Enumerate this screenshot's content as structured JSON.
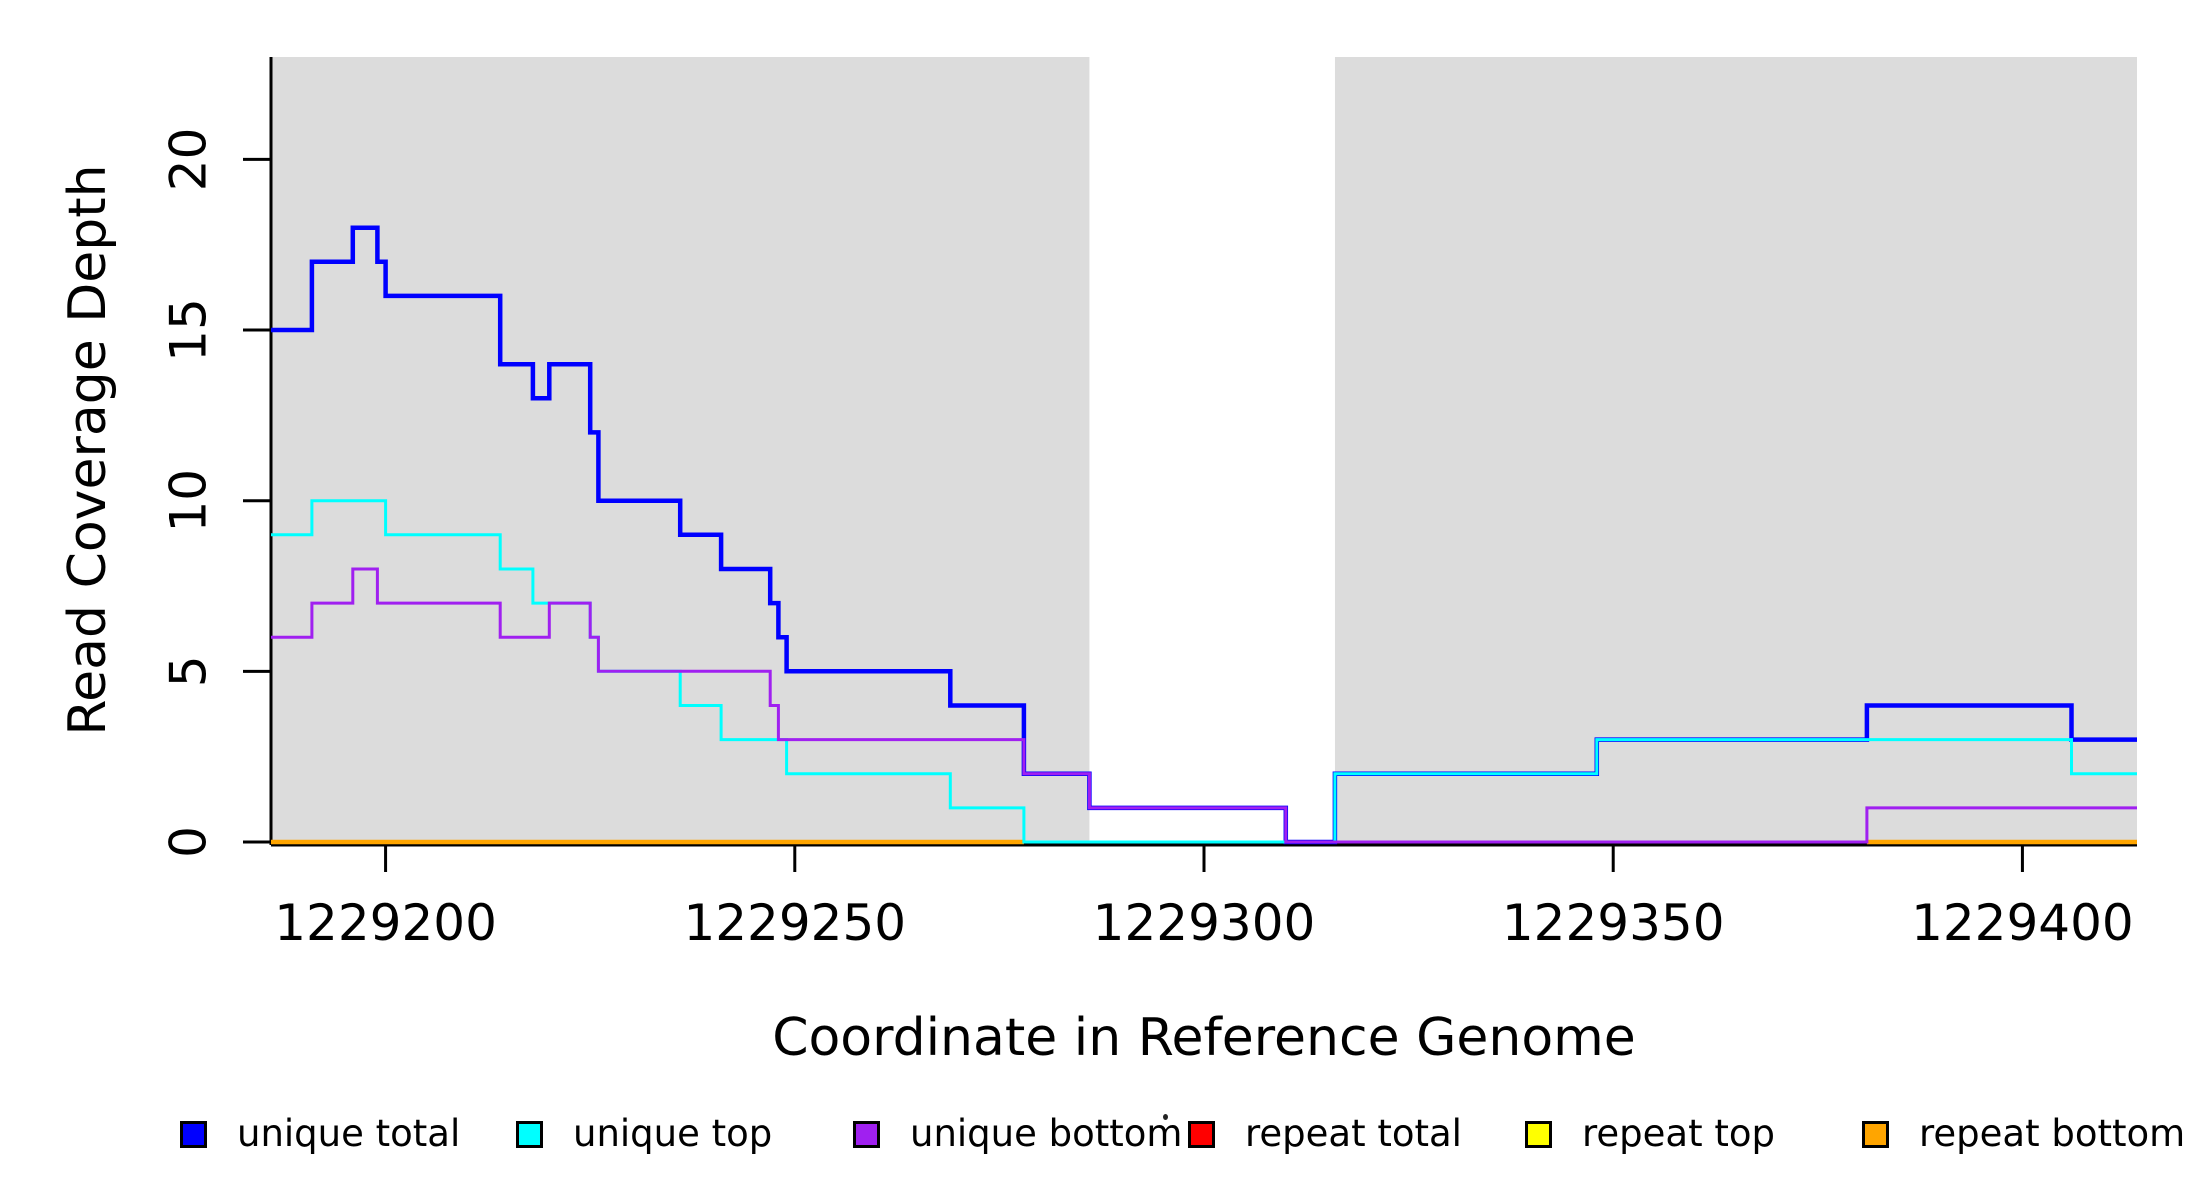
{
  "chart_data": {
    "type": "line",
    "subtype": "step-coverage-plot",
    "title": "",
    "xlabel": "Coordinate in Reference Genome",
    "ylabel": "Read Coverage Depth",
    "xlim": [
      1229186,
      1229414
    ],
    "ylim": [
      0,
      23
    ],
    "grid": false,
    "background_color": "#ffffff",
    "shaded_region_color": "#dcdcdc",
    "shaded_regions": [
      {
        "name": "left-shaded-region",
        "start": 1229186,
        "end": 1229286
      },
      {
        "name": "right-shaded-region",
        "start": 1229316,
        "end": 1229414
      }
    ],
    "xticks": {
      "values": [
        1229200,
        1229250,
        1229300,
        1229350,
        1229400
      ],
      "labels": [
        "1229200",
        "1229250",
        "1229300",
        "1229350",
        "1229400"
      ]
    },
    "yticks": {
      "values": [
        0,
        5,
        10,
        15,
        20
      ],
      "labels": [
        "0",
        "5",
        "10",
        "15",
        "20"
      ]
    },
    "series": [
      {
        "name": "unique total",
        "color": "#0000ff",
        "line_width": 4.5,
        "segments": [
          {
            "steps": [
              [
                1229186,
                15
              ],
              [
                1229191,
                17
              ],
              [
                1229196,
                18
              ],
              [
                1229199,
                17
              ],
              [
                1229200,
                16
              ],
              [
                1229214,
                14
              ],
              [
                1229218,
                13
              ],
              [
                1229220,
                14
              ],
              [
                1229225,
                12
              ],
              [
                1229226,
                10
              ],
              [
                1229236,
                9
              ],
              [
                1229241,
                8
              ],
              [
                1229247,
                7
              ],
              [
                1229248,
                6
              ],
              [
                1229249,
                5
              ],
              [
                1229269,
                4
              ],
              [
                1229278,
                2
              ],
              [
                1229286,
                1
              ],
              [
                1229310,
                0
              ],
              [
                1229316,
                2
              ],
              [
                1229348,
                3
              ],
              [
                1229381,
                4
              ],
              [
                1229406,
                3
              ]
            ],
            "end": 1229414
          }
        ]
      },
      {
        "name": "unique top",
        "color": "#00ffff",
        "line_width": 3,
        "segments": [
          {
            "steps": [
              [
                1229186,
                9
              ],
              [
                1229191,
                10
              ],
              [
                1229200,
                9
              ],
              [
                1229214,
                8
              ],
              [
                1229218,
                7
              ],
              [
                1229225,
                6
              ],
              [
                1229226,
                5
              ],
              [
                1229236,
                4
              ],
              [
                1229241,
                3
              ],
              [
                1229249,
                2
              ],
              [
                1229269,
                1
              ],
              [
                1229278,
                0
              ],
              [
                1229316,
                2
              ],
              [
                1229348,
                3
              ],
              [
                1229406,
                2
              ]
            ],
            "end": 1229414
          }
        ]
      },
      {
        "name": "unique bottom",
        "color": "#a020f0",
        "line_width": 3,
        "segments": [
          {
            "steps": [
              [
                1229186,
                6
              ],
              [
                1229191,
                7
              ],
              [
                1229196,
                8
              ],
              [
                1229199,
                7
              ],
              [
                1229214,
                6
              ],
              [
                1229220,
                7
              ],
              [
                1229225,
                6
              ],
              [
                1229226,
                5
              ],
              [
                1229247,
                4
              ],
              [
                1229248,
                3
              ],
              [
                1229278,
                2
              ],
              [
                1229286,
                1
              ],
              [
                1229310,
                0
              ],
              [
                1229381,
                1
              ]
            ],
            "end": 1229414
          }
        ]
      },
      {
        "name": "repeat total",
        "color": "#ff0000",
        "line_width": 3,
        "segments": [
          {
            "steps": [
              [
                1229186,
                0
              ]
            ],
            "end": 1229414
          }
        ]
      },
      {
        "name": "repeat top",
        "color": "#ffff00",
        "line_width": 3,
        "segments": [
          {
            "steps": [
              [
                1229186,
                0
              ]
            ],
            "end": 1229414
          }
        ]
      },
      {
        "name": "repeat bottom",
        "color": "#ffa500",
        "line_width": 4.5,
        "segments": [
          {
            "steps": [
              [
                1229186,
                0
              ]
            ],
            "end": 1229278
          },
          {
            "steps": [
              [
                1229381,
                0
              ]
            ],
            "end": 1229414
          }
        ]
      }
    ],
    "draw_order": [
      "repeat top",
      "repeat total",
      "repeat bottom",
      "unique total",
      "unique top",
      "unique bottom"
    ],
    "axis_color": "#000000"
  },
  "legend": {
    "position": "bottom",
    "items": [
      {
        "label": "unique total",
        "color": "#0000ff"
      },
      {
        "label": "unique top",
        "color": "#00ffff"
      },
      {
        "label": "unique bottom",
        "color": "#a020f0"
      },
      {
        "label": "repeat total",
        "color": "#ff0000"
      },
      {
        "label": "repeat top",
        "color": "#ffff00"
      },
      {
        "label": "repeat bottom",
        "color": "#ffa500"
      }
    ],
    "stray_dot_artifact": "·"
  }
}
